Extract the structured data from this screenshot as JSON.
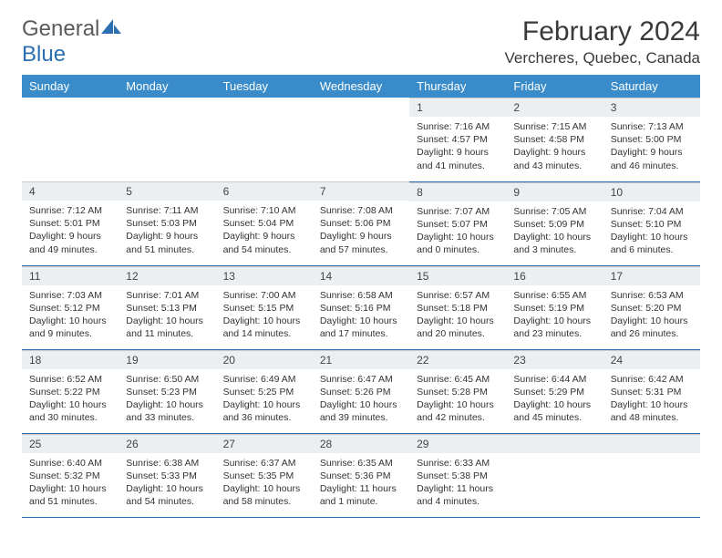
{
  "logo": {
    "part1": "General",
    "part2": "Blue"
  },
  "title": "February 2024",
  "location": "Vercheres, Quebec, Canada",
  "day_headers": [
    "Sunday",
    "Monday",
    "Tuesday",
    "Wednesday",
    "Thursday",
    "Friday",
    "Saturday"
  ],
  "colors": {
    "header_bg": "#3a8bc9",
    "header_text": "#ffffff",
    "daynum_bg": "#eceff1",
    "border": "#2c6fb0",
    "logo_gray": "#5a5a5a",
    "logo_blue": "#2c6fb0"
  },
  "weeks": [
    [
      {
        "day": ""
      },
      {
        "day": ""
      },
      {
        "day": ""
      },
      {
        "day": ""
      },
      {
        "day": "1",
        "sunrise": "Sunrise: 7:16 AM",
        "sunset": "Sunset: 4:57 PM",
        "daylight": "Daylight: 9 hours and 41 minutes."
      },
      {
        "day": "2",
        "sunrise": "Sunrise: 7:15 AM",
        "sunset": "Sunset: 4:58 PM",
        "daylight": "Daylight: 9 hours and 43 minutes."
      },
      {
        "day": "3",
        "sunrise": "Sunrise: 7:13 AM",
        "sunset": "Sunset: 5:00 PM",
        "daylight": "Daylight: 9 hours and 46 minutes."
      }
    ],
    [
      {
        "day": "4",
        "sunrise": "Sunrise: 7:12 AM",
        "sunset": "Sunset: 5:01 PM",
        "daylight": "Daylight: 9 hours and 49 minutes."
      },
      {
        "day": "5",
        "sunrise": "Sunrise: 7:11 AM",
        "sunset": "Sunset: 5:03 PM",
        "daylight": "Daylight: 9 hours and 51 minutes."
      },
      {
        "day": "6",
        "sunrise": "Sunrise: 7:10 AM",
        "sunset": "Sunset: 5:04 PM",
        "daylight": "Daylight: 9 hours and 54 minutes."
      },
      {
        "day": "7",
        "sunrise": "Sunrise: 7:08 AM",
        "sunset": "Sunset: 5:06 PM",
        "daylight": "Daylight: 9 hours and 57 minutes."
      },
      {
        "day": "8",
        "sunrise": "Sunrise: 7:07 AM",
        "sunset": "Sunset: 5:07 PM",
        "daylight": "Daylight: 10 hours and 0 minutes."
      },
      {
        "day": "9",
        "sunrise": "Sunrise: 7:05 AM",
        "sunset": "Sunset: 5:09 PM",
        "daylight": "Daylight: 10 hours and 3 minutes."
      },
      {
        "day": "10",
        "sunrise": "Sunrise: 7:04 AM",
        "sunset": "Sunset: 5:10 PM",
        "daylight": "Daylight: 10 hours and 6 minutes."
      }
    ],
    [
      {
        "day": "11",
        "sunrise": "Sunrise: 7:03 AM",
        "sunset": "Sunset: 5:12 PM",
        "daylight": "Daylight: 10 hours and 9 minutes."
      },
      {
        "day": "12",
        "sunrise": "Sunrise: 7:01 AM",
        "sunset": "Sunset: 5:13 PM",
        "daylight": "Daylight: 10 hours and 11 minutes."
      },
      {
        "day": "13",
        "sunrise": "Sunrise: 7:00 AM",
        "sunset": "Sunset: 5:15 PM",
        "daylight": "Daylight: 10 hours and 14 minutes."
      },
      {
        "day": "14",
        "sunrise": "Sunrise: 6:58 AM",
        "sunset": "Sunset: 5:16 PM",
        "daylight": "Daylight: 10 hours and 17 minutes."
      },
      {
        "day": "15",
        "sunrise": "Sunrise: 6:57 AM",
        "sunset": "Sunset: 5:18 PM",
        "daylight": "Daylight: 10 hours and 20 minutes."
      },
      {
        "day": "16",
        "sunrise": "Sunrise: 6:55 AM",
        "sunset": "Sunset: 5:19 PM",
        "daylight": "Daylight: 10 hours and 23 minutes."
      },
      {
        "day": "17",
        "sunrise": "Sunrise: 6:53 AM",
        "sunset": "Sunset: 5:20 PM",
        "daylight": "Daylight: 10 hours and 26 minutes."
      }
    ],
    [
      {
        "day": "18",
        "sunrise": "Sunrise: 6:52 AM",
        "sunset": "Sunset: 5:22 PM",
        "daylight": "Daylight: 10 hours and 30 minutes."
      },
      {
        "day": "19",
        "sunrise": "Sunrise: 6:50 AM",
        "sunset": "Sunset: 5:23 PM",
        "daylight": "Daylight: 10 hours and 33 minutes."
      },
      {
        "day": "20",
        "sunrise": "Sunrise: 6:49 AM",
        "sunset": "Sunset: 5:25 PM",
        "daylight": "Daylight: 10 hours and 36 minutes."
      },
      {
        "day": "21",
        "sunrise": "Sunrise: 6:47 AM",
        "sunset": "Sunset: 5:26 PM",
        "daylight": "Daylight: 10 hours and 39 minutes."
      },
      {
        "day": "22",
        "sunrise": "Sunrise: 6:45 AM",
        "sunset": "Sunset: 5:28 PM",
        "daylight": "Daylight: 10 hours and 42 minutes."
      },
      {
        "day": "23",
        "sunrise": "Sunrise: 6:44 AM",
        "sunset": "Sunset: 5:29 PM",
        "daylight": "Daylight: 10 hours and 45 minutes."
      },
      {
        "day": "24",
        "sunrise": "Sunrise: 6:42 AM",
        "sunset": "Sunset: 5:31 PM",
        "daylight": "Daylight: 10 hours and 48 minutes."
      }
    ],
    [
      {
        "day": "25",
        "sunrise": "Sunrise: 6:40 AM",
        "sunset": "Sunset: 5:32 PM",
        "daylight": "Daylight: 10 hours and 51 minutes."
      },
      {
        "day": "26",
        "sunrise": "Sunrise: 6:38 AM",
        "sunset": "Sunset: 5:33 PM",
        "daylight": "Daylight: 10 hours and 54 minutes."
      },
      {
        "day": "27",
        "sunrise": "Sunrise: 6:37 AM",
        "sunset": "Sunset: 5:35 PM",
        "daylight": "Daylight: 10 hours and 58 minutes."
      },
      {
        "day": "28",
        "sunrise": "Sunrise: 6:35 AM",
        "sunset": "Sunset: 5:36 PM",
        "daylight": "Daylight: 11 hours and 1 minute."
      },
      {
        "day": "29",
        "sunrise": "Sunrise: 6:33 AM",
        "sunset": "Sunset: 5:38 PM",
        "daylight": "Daylight: 11 hours and 4 minutes."
      },
      {
        "day": ""
      },
      {
        "day": ""
      }
    ]
  ]
}
